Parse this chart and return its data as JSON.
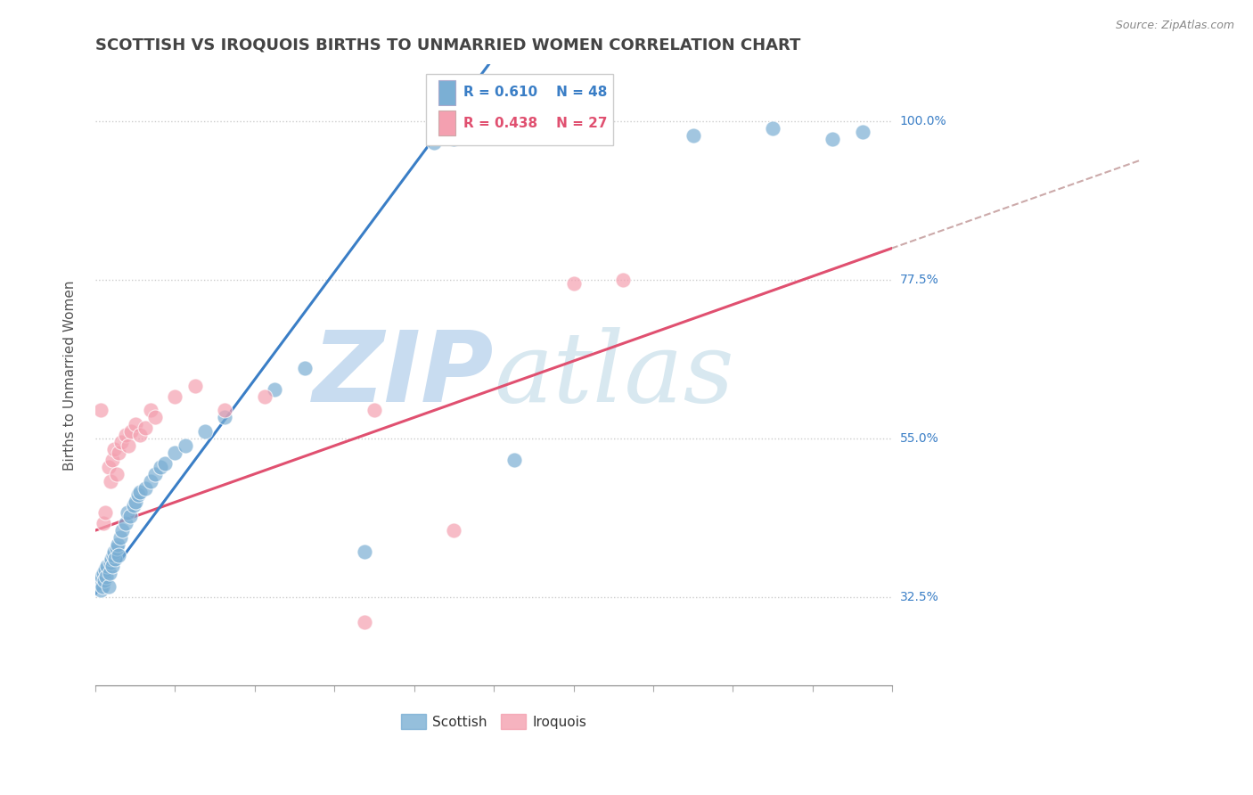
{
  "title": "SCOTTISH VS IROQUOIS BIRTHS TO UNMARRIED WOMEN CORRELATION CHART",
  "source": "Source: ZipAtlas.com",
  "ylabel": "Births to Unmarried Women",
  "x_min": 0.0,
  "x_max": 0.8,
  "y_min": 0.2,
  "y_max": 1.08,
  "y_ticks": [
    0.325,
    0.55,
    0.775,
    1.0
  ],
  "y_tick_labels": [
    "32.5%",
    "55.0%",
    "77.5%",
    "100.0%"
  ],
  "legend_R_scottish": "R = 0.610",
  "legend_N_scottish": "N = 48",
  "legend_R_iroquois": "R = 0.438",
  "legend_N_iroquois": "N = 27",
  "scottish_color": "#7BAFD4",
  "iroquois_color": "#F4A0B0",
  "scottish_line_color": "#3A7EC6",
  "iroquois_line_color": "#E05070",
  "label_color": "#3A7EC6",
  "scottish_reg_slope": 1.9,
  "scottish_reg_intercept": 0.33,
  "iroquois_reg_slope": 0.5,
  "iroquois_reg_intercept": 0.42,
  "scottish_points": [
    [
      0.003,
      0.345
    ],
    [
      0.005,
      0.335
    ],
    [
      0.006,
      0.355
    ],
    [
      0.007,
      0.34
    ],
    [
      0.008,
      0.36
    ],
    [
      0.009,
      0.35
    ],
    [
      0.01,
      0.365
    ],
    [
      0.011,
      0.355
    ],
    [
      0.012,
      0.37
    ],
    [
      0.013,
      0.34
    ],
    [
      0.014,
      0.36
    ],
    [
      0.015,
      0.375
    ],
    [
      0.016,
      0.38
    ],
    [
      0.017,
      0.37
    ],
    [
      0.018,
      0.385
    ],
    [
      0.019,
      0.39
    ],
    [
      0.02,
      0.38
    ],
    [
      0.021,
      0.395
    ],
    [
      0.022,
      0.4
    ],
    [
      0.023,
      0.385
    ],
    [
      0.025,
      0.41
    ],
    [
      0.027,
      0.42
    ],
    [
      0.03,
      0.43
    ],
    [
      0.032,
      0.445
    ],
    [
      0.035,
      0.44
    ],
    [
      0.038,
      0.455
    ],
    [
      0.04,
      0.46
    ],
    [
      0.043,
      0.47
    ],
    [
      0.045,
      0.475
    ],
    [
      0.05,
      0.48
    ],
    [
      0.055,
      0.49
    ],
    [
      0.06,
      0.5
    ],
    [
      0.065,
      0.51
    ],
    [
      0.07,
      0.515
    ],
    [
      0.08,
      0.53
    ],
    [
      0.09,
      0.54
    ],
    [
      0.11,
      0.56
    ],
    [
      0.13,
      0.58
    ],
    [
      0.18,
      0.62
    ],
    [
      0.21,
      0.65
    ],
    [
      0.34,
      0.97
    ],
    [
      0.36,
      0.975
    ],
    [
      0.6,
      0.98
    ],
    [
      0.68,
      0.99
    ],
    [
      0.74,
      0.975
    ],
    [
      0.77,
      0.985
    ],
    [
      0.27,
      0.39
    ],
    [
      0.42,
      0.52
    ]
  ],
  "iroquois_points": [
    [
      0.005,
      0.59
    ],
    [
      0.008,
      0.43
    ],
    [
      0.01,
      0.445
    ],
    [
      0.013,
      0.51
    ],
    [
      0.015,
      0.49
    ],
    [
      0.017,
      0.52
    ],
    [
      0.019,
      0.535
    ],
    [
      0.021,
      0.5
    ],
    [
      0.023,
      0.53
    ],
    [
      0.026,
      0.545
    ],
    [
      0.03,
      0.555
    ],
    [
      0.033,
      0.54
    ],
    [
      0.036,
      0.56
    ],
    [
      0.04,
      0.57
    ],
    [
      0.045,
      0.555
    ],
    [
      0.05,
      0.565
    ],
    [
      0.055,
      0.59
    ],
    [
      0.06,
      0.58
    ],
    [
      0.08,
      0.61
    ],
    [
      0.1,
      0.625
    ],
    [
      0.13,
      0.59
    ],
    [
      0.17,
      0.61
    ],
    [
      0.28,
      0.59
    ],
    [
      0.48,
      0.77
    ],
    [
      0.53,
      0.775
    ],
    [
      0.27,
      0.29
    ],
    [
      0.36,
      0.42
    ]
  ]
}
